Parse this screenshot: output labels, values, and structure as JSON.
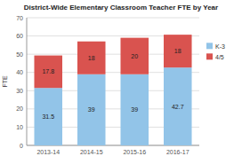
{
  "chart_data": {
    "type": "bar",
    "stacked": true,
    "title": "District-Wide Elementary Classroom Teacher FTE by Year",
    "categories": [
      "2013-14",
      "2014-15",
      "2015-16",
      "2016-17"
    ],
    "series": [
      {
        "name": "K-3",
        "color": "#92C4E8",
        "values": [
          31.5,
          39,
          39,
          42.7
        ]
      },
      {
        "name": "4/5",
        "color": "#D9534F",
        "values": [
          17.8,
          18,
          20,
          18
        ]
      }
    ],
    "ylabel": "FTE",
    "ylim": [
      0,
      70
    ],
    "yticks": [
      0,
      10,
      20,
      30,
      40,
      50,
      60,
      70
    ],
    "grid": true,
    "data_labels": true,
    "legend": "right"
  }
}
